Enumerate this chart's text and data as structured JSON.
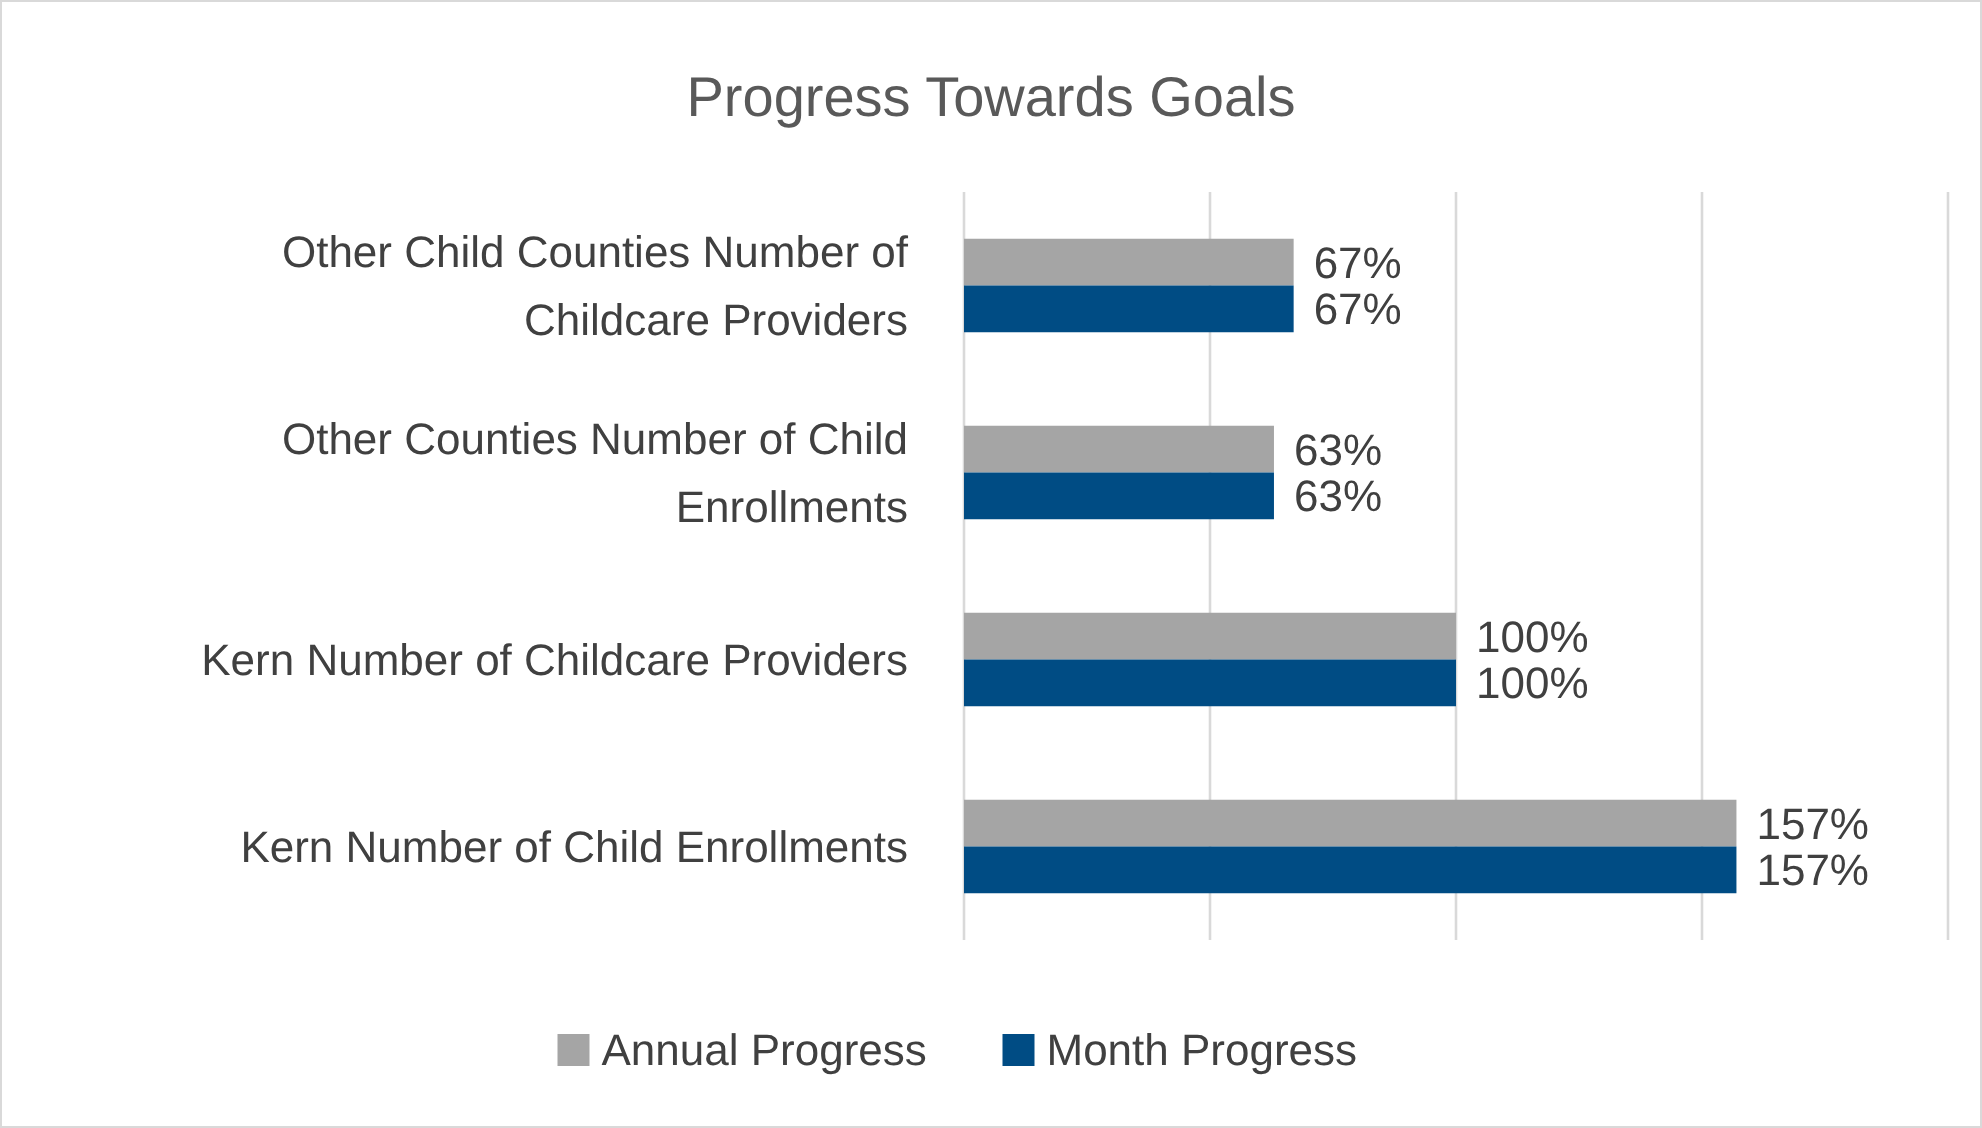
{
  "chart_data": {
    "type": "bar",
    "orientation": "horizontal",
    "title": "Progress Towards Goals",
    "categories": [
      "Other Child Counties Number of Childcare Providers",
      "Other Counties Number of Child Enrollments",
      "Kern Number of Childcare Providers",
      "Kern Number of Child Enrollments"
    ],
    "series": [
      {
        "name": "Annual Progress",
        "color": "#a5a5a5",
        "values": [
          67,
          63,
          100,
          157
        ],
        "value_labels": [
          "67%",
          "63%",
          "100%",
          "157%"
        ]
      },
      {
        "name": "Month Progress",
        "color": "#004c84",
        "values": [
          67,
          63,
          100,
          157
        ],
        "value_labels": [
          "67%",
          "63%",
          "100%",
          "157%"
        ]
      }
    ],
    "xlim": [
      0,
      200
    ],
    "xticks": [
      {
        "value": 0,
        "label": null
      },
      {
        "value": 50,
        "label": null
      },
      {
        "value": 100,
        "label": null
      },
      {
        "value": 150,
        "label": null
      },
      {
        "value": 200,
        "label": null
      }
    ],
    "grid": "x",
    "tick_labels": "y",
    "legend": "bottom"
  }
}
